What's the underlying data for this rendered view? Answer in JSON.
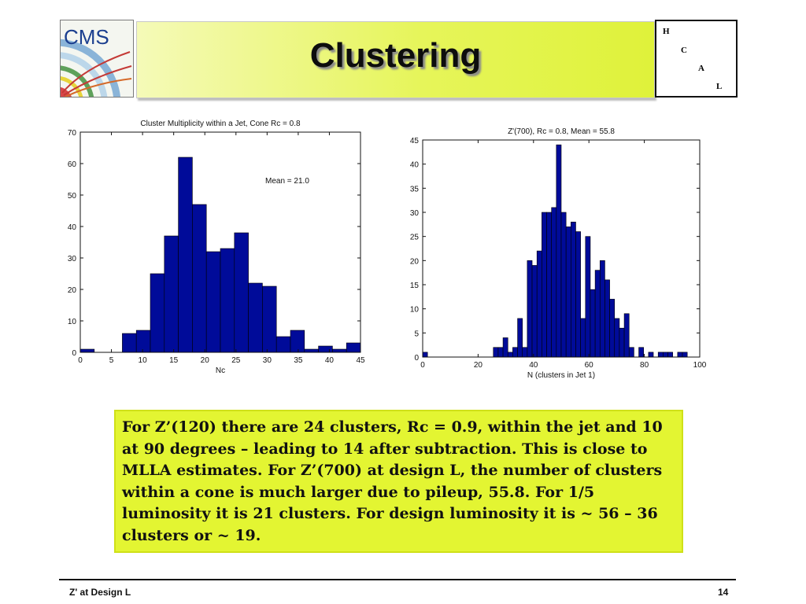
{
  "logo": {
    "text": "CMS"
  },
  "title": "Clustering",
  "hcal": {
    "letters": [
      "H",
      "C",
      "A",
      "L"
    ]
  },
  "chart_data": [
    {
      "type": "bar",
      "title": "Cluster Multiplicity within a Jet, Cone Rc = 0.8",
      "xlabel": "Nc",
      "ylabel": "",
      "annotation": "Mean = 21.0",
      "xlim": [
        0,
        45
      ],
      "ylim": [
        0,
        70
      ],
      "xticks": [
        0,
        5,
        10,
        15,
        20,
        25,
        30,
        35,
        40,
        45
      ],
      "yticks": [
        0,
        10,
        20,
        30,
        40,
        50,
        60,
        70
      ],
      "bin_width": 2.25,
      "bin_starts": [
        0,
        2.25,
        4.5,
        6.75,
        9,
        11.25,
        13.5,
        15.75,
        18,
        20.25,
        22.5,
        24.75,
        27,
        29.25,
        31.5,
        33.75,
        36,
        38.25,
        40.5,
        42.75
      ],
      "values": [
        1,
        0,
        0,
        6,
        7,
        25,
        37,
        62,
        47,
        32,
        33,
        38,
        22,
        21,
        5,
        7,
        1,
        2,
        1,
        3
      ],
      "color": "#000b99"
    },
    {
      "type": "bar",
      "title": "Z'(700), Rc = 0.8,  Mean = 55.8",
      "xlabel": "N (clusters in Jet 1)",
      "ylabel": "",
      "xlim": [
        0,
        100
      ],
      "ylim": [
        0,
        45
      ],
      "xticks": [
        0,
        20,
        40,
        60,
        80,
        100
      ],
      "yticks": [
        0,
        5,
        10,
        15,
        20,
        25,
        30,
        35,
        40,
        45
      ],
      "bin_width": 1.75,
      "bin_starts": [
        0,
        25.5,
        27.25,
        29,
        30.75,
        32.5,
        34.25,
        36,
        37.75,
        39.5,
        41.25,
        43,
        44.75,
        46.5,
        48.25,
        50,
        51.75,
        53.5,
        55.25,
        57,
        58.75,
        60.5,
        62.25,
        64,
        65.75,
        67.5,
        69.25,
        71,
        72.75,
        74.5,
        76.25,
        78,
        79.75,
        81.5,
        83.25,
        85,
        86.75,
        88.5,
        90.25,
        92,
        93.75
      ],
      "values": [
        1,
        2,
        2,
        4,
        1,
        2,
        8,
        2,
        20,
        19,
        22,
        30,
        30,
        31,
        44,
        30,
        27,
        28,
        26,
        8,
        25,
        14,
        18,
        20,
        16,
        12,
        8,
        6,
        9,
        2,
        0,
        2,
        0,
        1,
        0,
        1,
        1,
        1,
        0,
        1,
        1
      ],
      "color": "#000b99"
    }
  ],
  "caption": "For Z’(120) there are 24 clusters, Rc = 0.9,  within the jet and 10 at 90 degrees – leading to 14 after subtraction. This is close to MLLA estimates.  For Z’(700) at design L, the number of clusters within a cone is much larger due to pileup, 55.8.  For 1/5 luminosity it is 21 clusters. For design luminosity it is ~ 56 – 36 clusters or ~ 19.",
  "footer": {
    "left": "Z' at Design L",
    "right": "14"
  }
}
